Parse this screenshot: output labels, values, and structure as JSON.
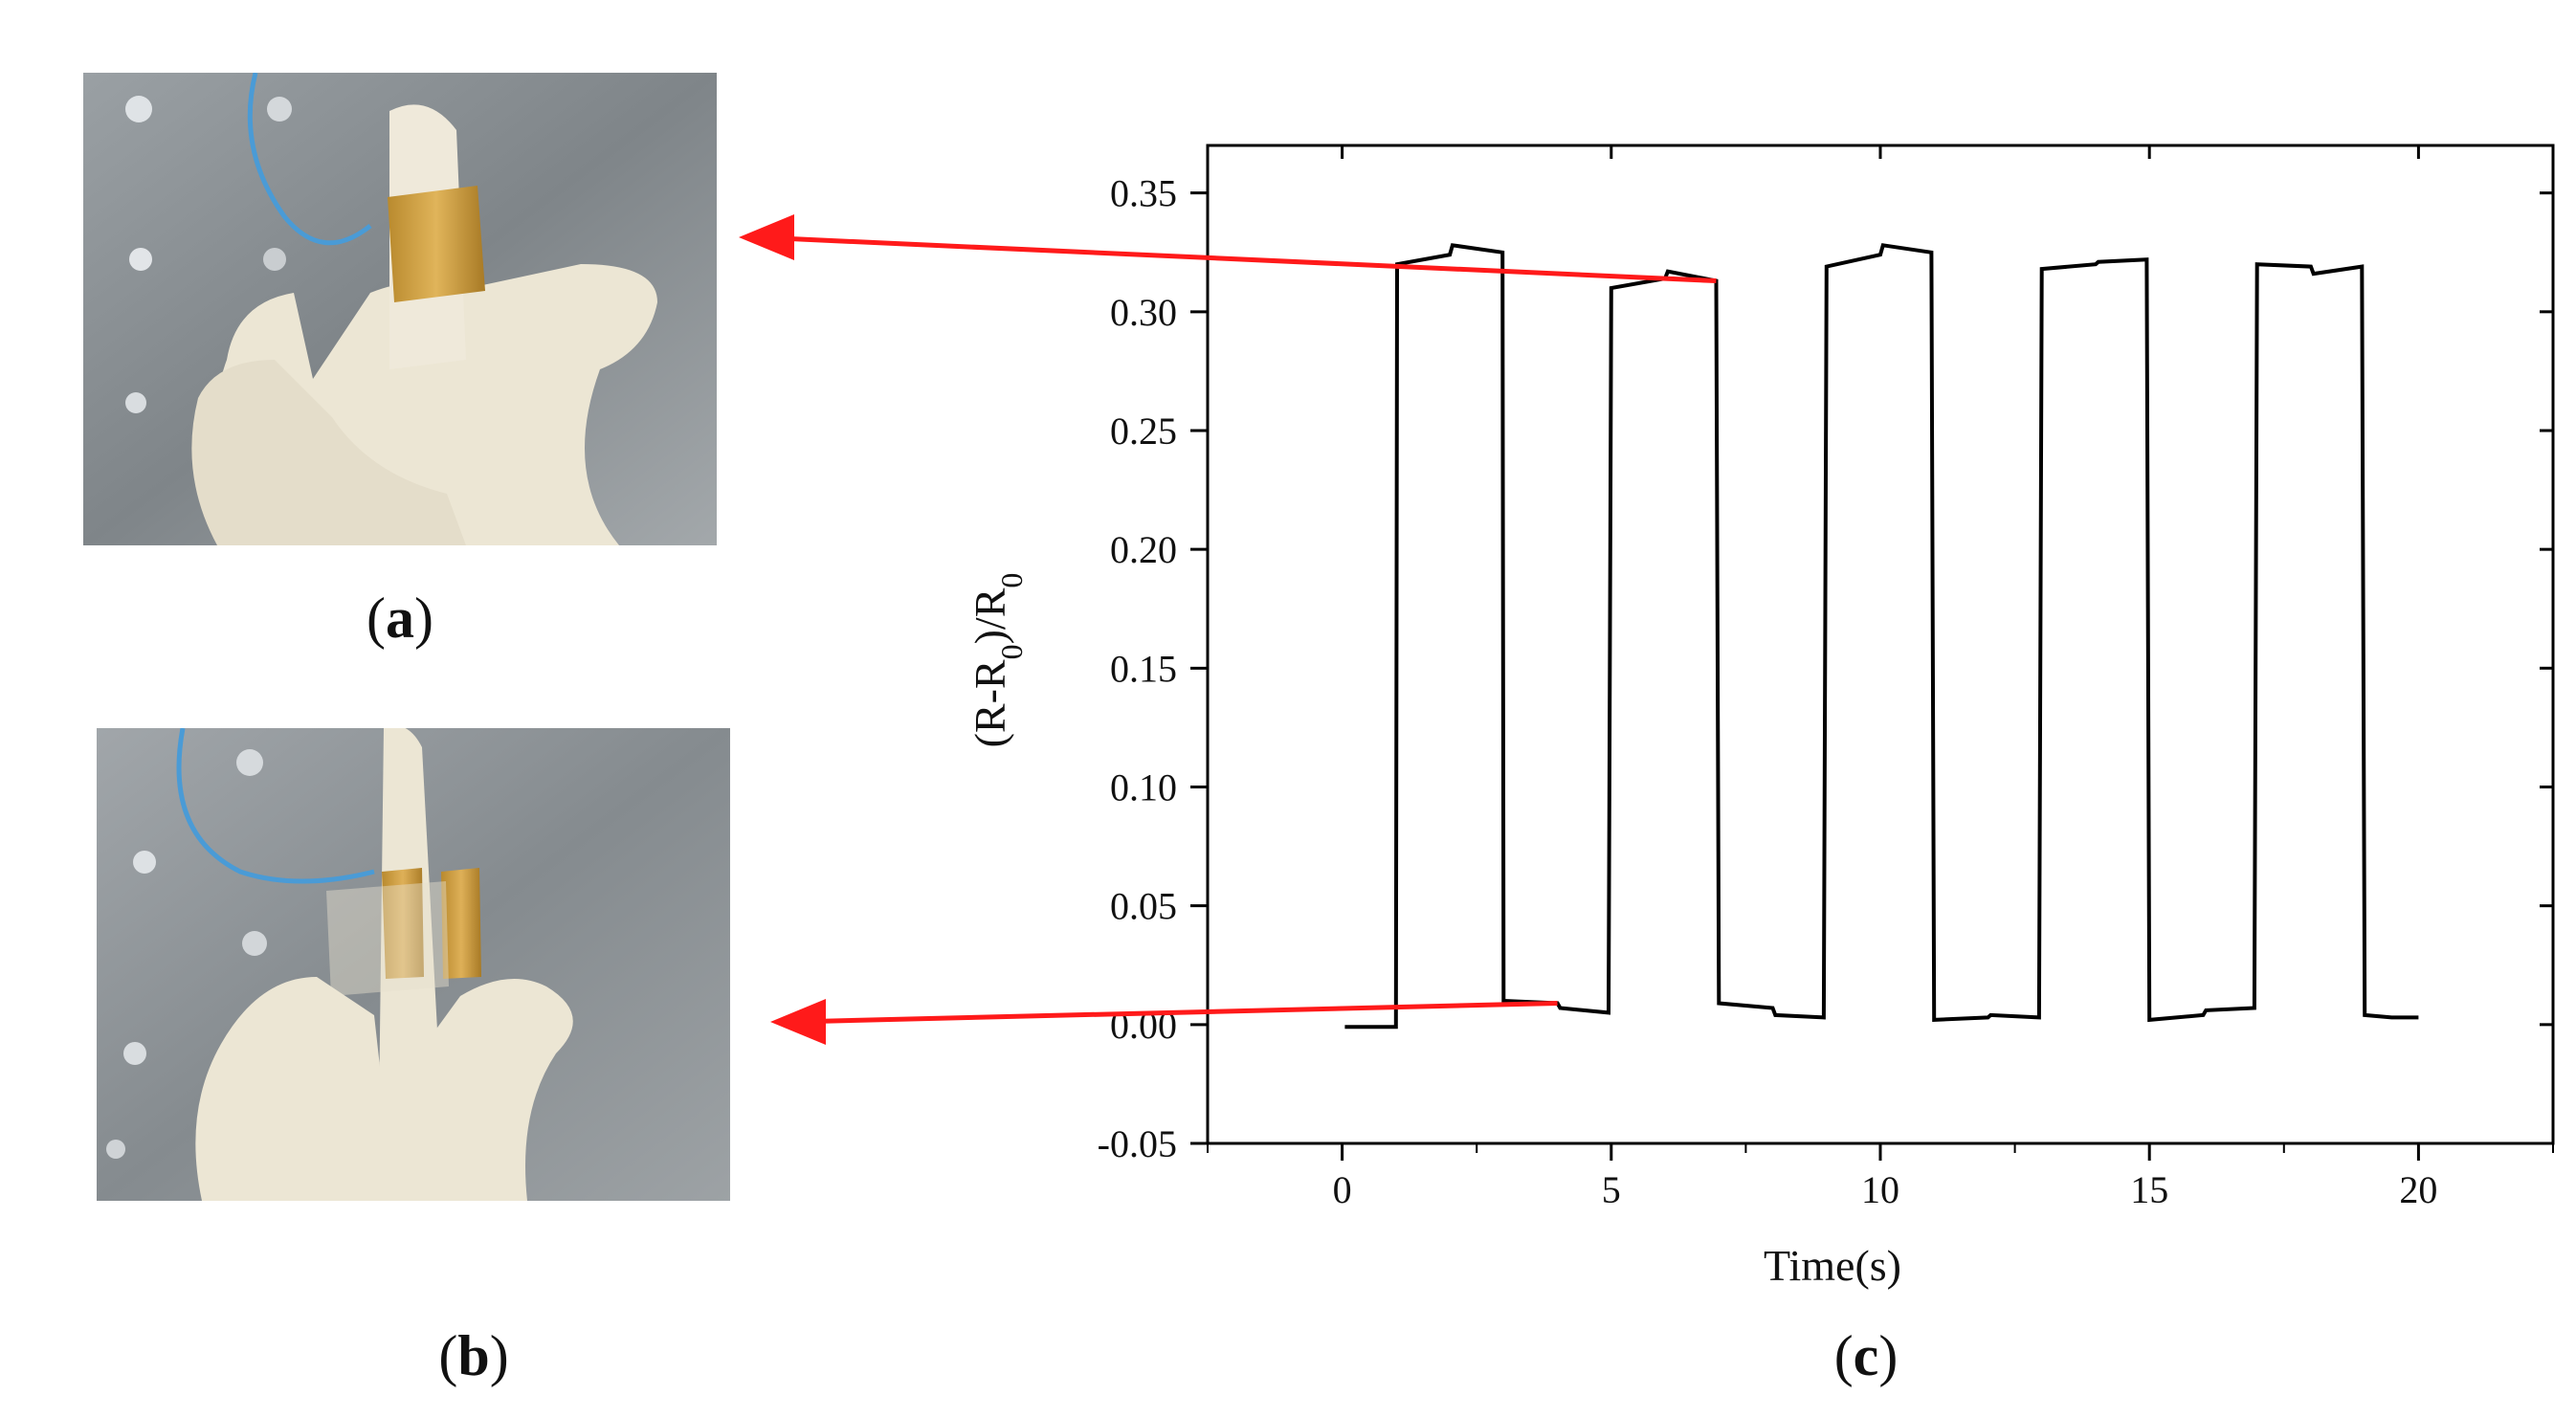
{
  "panels": {
    "a": {
      "label_open": "(",
      "label_letter": "a",
      "label_close": ")"
    },
    "b": {
      "label_open": "(",
      "label_letter": "b",
      "label_close": ")"
    },
    "c": {
      "label_open": "(",
      "label_letter": "c",
      "label_close": ")"
    }
  },
  "colors": {
    "arrow": "#ff1a1a",
    "line": "#000000",
    "glove": "#ece6d4",
    "electrode": "#c99a3a",
    "background_plate": "#8f9498",
    "wire": "#4a9bd6"
  },
  "chart_data": {
    "type": "line",
    "title": "",
    "xlabel": "Time(s)",
    "ylabel_main": "(R-R",
    "ylabel_sub1": "0",
    "ylabel_mid": ")/R",
    "ylabel_sub2": "0",
    "xlim": [
      -2.5,
      22.5
    ],
    "ylim": [
      -0.05,
      0.37
    ],
    "x_ticks": [
      0,
      5,
      10,
      15,
      20
    ],
    "x_tick_labels": [
      "0",
      "5",
      "10",
      "15",
      "20"
    ],
    "y_ticks": [
      -0.05,
      0.0,
      0.05,
      0.1,
      0.15,
      0.2,
      0.25,
      0.3,
      0.35
    ],
    "y_tick_labels": [
      "-0.05",
      "0.00",
      "0.05",
      "0.10",
      "0.15",
      "0.20",
      "0.25",
      "0.30",
      "0.35"
    ],
    "grid": false,
    "series": [
      {
        "x": [
          0.05,
          1.0,
          1.02,
          2.0,
          2.05,
          2.98,
          3.0,
          4.0,
          4.05,
          4.95,
          5.0,
          6.0,
          6.05,
          6.95,
          7.0,
          8.0,
          8.05,
          8.95,
          9.0,
          10.0,
          10.05,
          10.95,
          11.0,
          12.0,
          12.05,
          12.95,
          13.0,
          14.0,
          14.05,
          14.95,
          15.0,
          16.0,
          16.05,
          16.95,
          17.0,
          18.0,
          18.05,
          18.95,
          19.0,
          19.5,
          20.0
        ],
        "y": [
          -0.001,
          -0.001,
          0.32,
          0.324,
          0.328,
          0.325,
          0.01,
          0.009,
          0.007,
          0.005,
          0.31,
          0.314,
          0.317,
          0.313,
          0.009,
          0.007,
          0.004,
          0.003,
          0.319,
          0.324,
          0.328,
          0.325,
          0.002,
          0.003,
          0.004,
          0.003,
          0.318,
          0.32,
          0.321,
          0.322,
          0.002,
          0.004,
          0.006,
          0.007,
          0.32,
          0.319,
          0.316,
          0.319,
          0.004,
          0.003,
          0.003
        ]
      }
    ]
  }
}
